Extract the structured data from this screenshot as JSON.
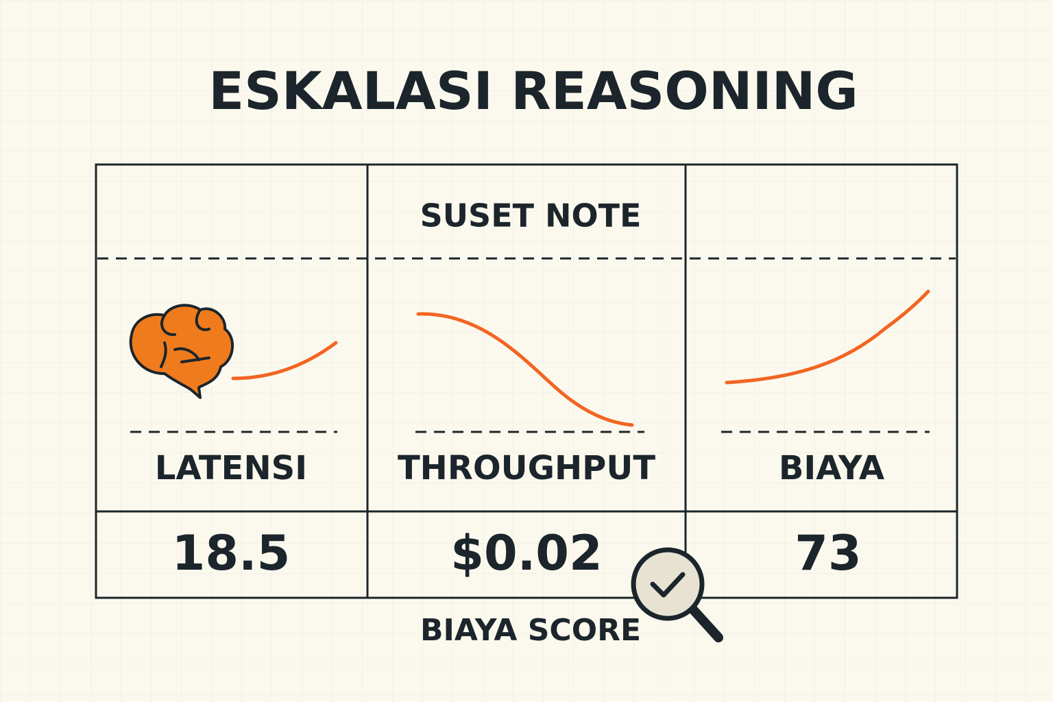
{
  "title": "ESKALASI REASONING",
  "header": {
    "note": "SUSET NOTE"
  },
  "columns": [
    {
      "label": "LATENSI",
      "value": "18.5"
    },
    {
      "label": "THROUGHPUT",
      "value": "$0.02"
    },
    {
      "label": "BIAYA",
      "value": "73"
    }
  ],
  "footer": "BIAYA SCORE"
}
